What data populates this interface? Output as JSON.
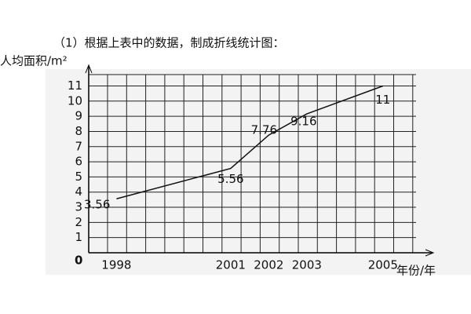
{
  "header": "（1）根据上表中的数据，制成折线统计图：",
  "chart_data": {
    "type": "line",
    "y_label": "人均面积/m²",
    "x_label": "年份/年",
    "origin_label": "0",
    "x": [
      1998,
      2001,
      2002,
      2003,
      2005
    ],
    "series": [
      {
        "name": "人均面积",
        "color": "#111111",
        "values": [
          3.56,
          5.56,
          7.76,
          9.16,
          11
        ]
      }
    ],
    "xlim": [
      1997.27,
      2005.87
    ],
    "xticks": [
      1998,
      2001,
      2002,
      2003,
      2005
    ],
    "ylim": [
      0,
      11.75
    ],
    "yticks": [
      1,
      2,
      3,
      4,
      5,
      6,
      7,
      8,
      9,
      10,
      11
    ],
    "grid": true
  }
}
